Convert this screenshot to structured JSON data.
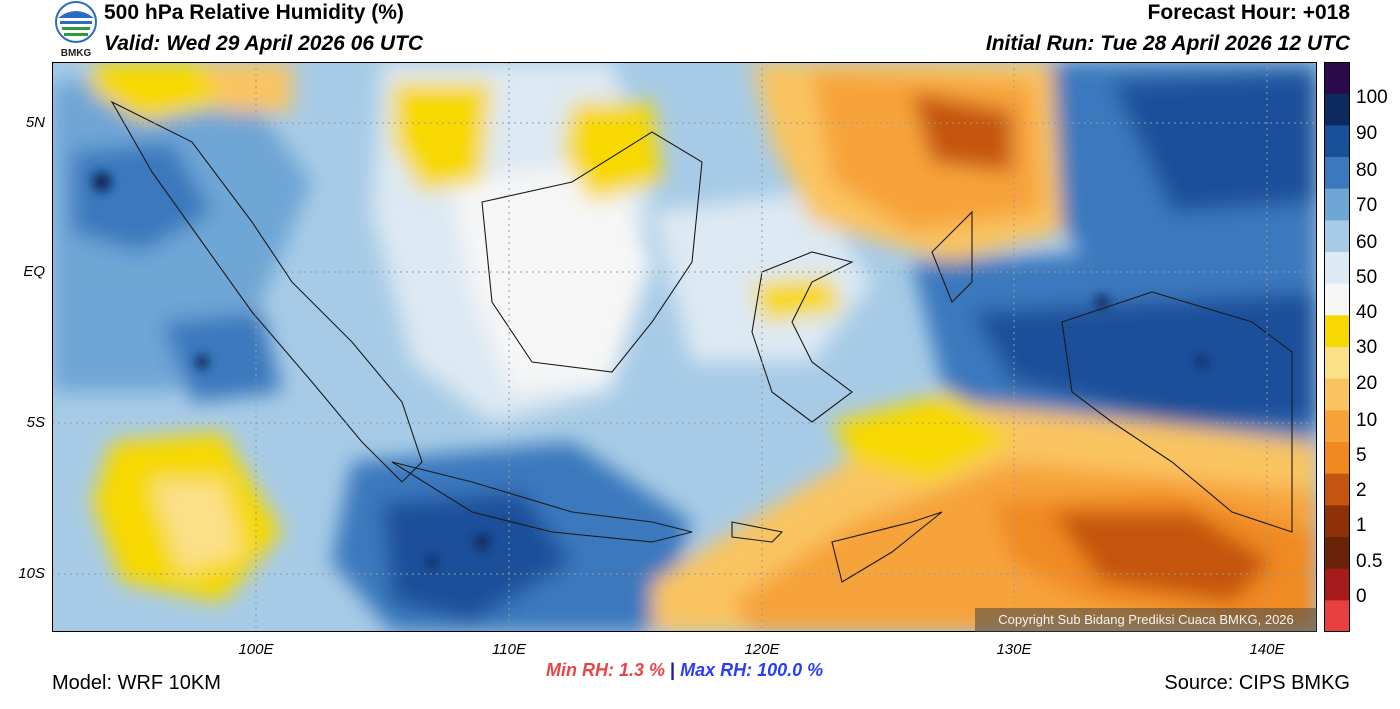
{
  "header": {
    "title": "500 hPa Relative Humidity (%)",
    "valid": "Valid: Wed 29 April 2026 06 UTC",
    "forecast_hour": "Forecast Hour: +018",
    "initial_run": "Initial Run: Tue 28 April 2026 12 UTC",
    "logo_text": "BMKG"
  },
  "axes": {
    "lat_labels": [
      "5N",
      "EQ",
      "5S",
      "10S"
    ],
    "lon_labels": [
      "100E",
      "110E",
      "120E",
      "130E",
      "140E"
    ]
  },
  "colorbar": {
    "labels": [
      "100",
      "90",
      "80",
      "70",
      "60",
      "50",
      "40",
      "30",
      "20",
      "10",
      "5",
      "2",
      "1",
      "0.5",
      "0"
    ],
    "colors": [
      "#2a0a4a",
      "#0d2a5e",
      "#1a4f9a",
      "#3b78bd",
      "#6ea6d6",
      "#a7cbe6",
      "#dde9f3",
      "#f6f6f6",
      "#f7d800",
      "#fbe08a",
      "#f9c460",
      "#f7a33a",
      "#f08a20",
      "#c55410",
      "#8e3008",
      "#6a2208",
      "#a51a1a",
      "#e84040"
    ]
  },
  "stats": {
    "min_label": "Min RH:",
    "min_value": "1.3 %",
    "separator": "|",
    "max_label": "Max RH: 100.0 %"
  },
  "footer": {
    "model": "Model: WRF 10KM",
    "source": "Source: CIPS BMKG",
    "copyright": "Copyright Sub Bidang Prediksi Cuaca BMKG, 2026"
  }
}
